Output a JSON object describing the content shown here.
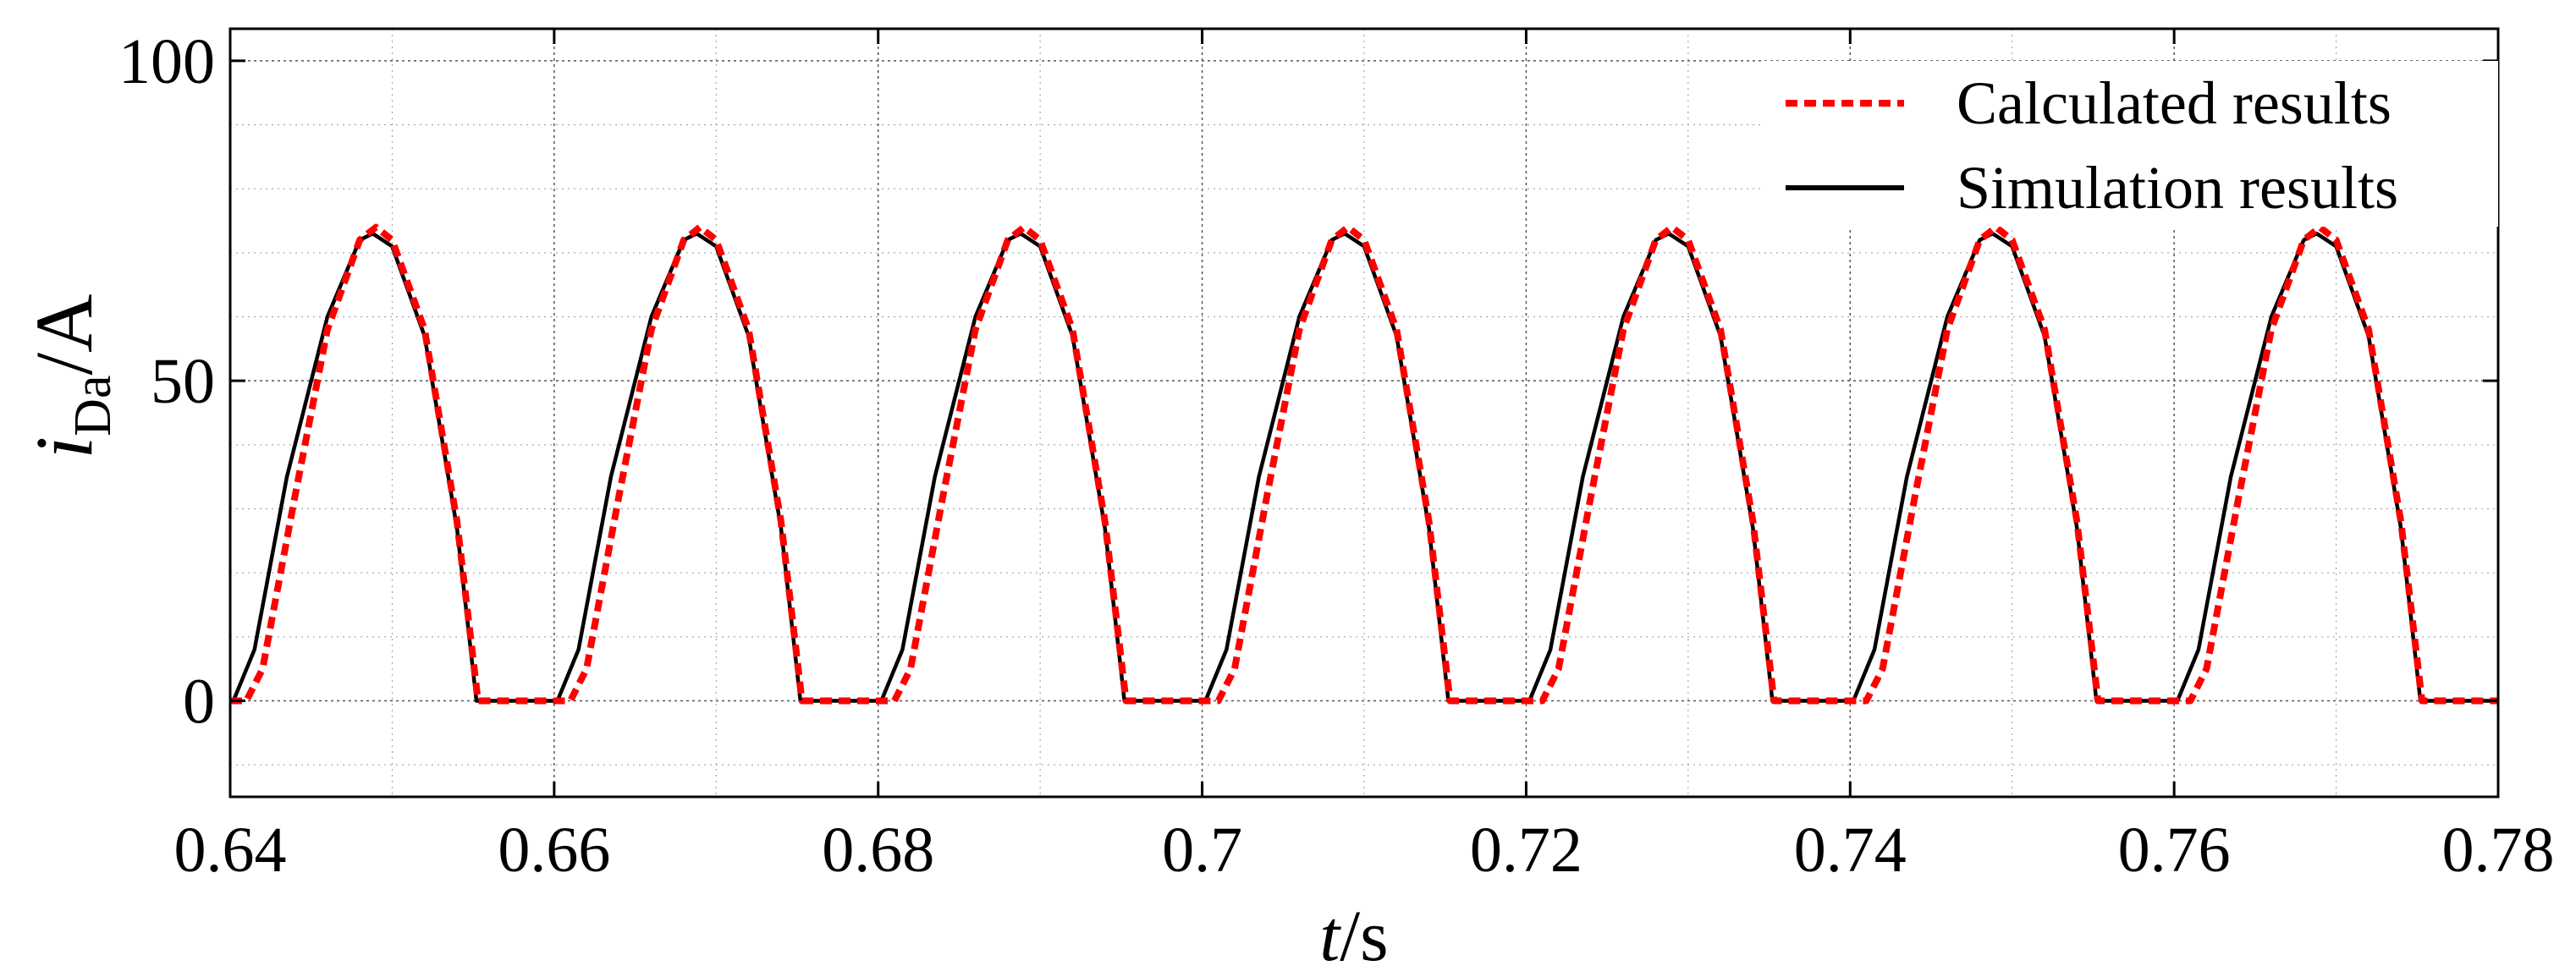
{
  "chart_data": {
    "type": "line",
    "title": "",
    "xlabel": {
      "var": "t",
      "unit": "/s"
    },
    "ylabel": {
      "var": "i",
      "sub": "Da",
      "unit": "/A"
    },
    "xlim": [
      0.64,
      0.78
    ],
    "ylim": [
      -15,
      105
    ],
    "xticks": [
      0.64,
      0.66,
      0.68,
      0.7,
      0.72,
      0.74,
      0.76,
      0.78
    ],
    "xtick_labels": [
      "0.64",
      "0.66",
      "0.68",
      "0.7",
      "0.72",
      "0.74",
      "0.76",
      "0.78"
    ],
    "yticks": [
      0,
      50,
      100
    ],
    "ytick_labels": [
      "0",
      "50",
      "100"
    ],
    "grid": true,
    "legend_position": "top-right",
    "series": [
      {
        "name": "Calculated results",
        "color": "#ff0000",
        "style": "dashed",
        "x": [
          0.64,
          0.641,
          0.642,
          0.644,
          0.646,
          0.648,
          0.649,
          0.65,
          0.652,
          0.654,
          0.6553,
          0.657,
          0.659,
          0.661,
          0.662,
          0.664,
          0.666,
          0.668,
          0.669,
          0.67,
          0.672,
          0.674,
          0.6753,
          0.677,
          0.679,
          0.681,
          0.682,
          0.684,
          0.686,
          0.688,
          0.689,
          0.69,
          0.692,
          0.694,
          0.6953,
          0.697,
          0.699,
          0.701,
          0.702,
          0.704,
          0.706,
          0.708,
          0.709,
          0.71,
          0.712,
          0.714,
          0.7153,
          0.717,
          0.719,
          0.721,
          0.722,
          0.724,
          0.726,
          0.728,
          0.729,
          0.73,
          0.732,
          0.734,
          0.7353,
          0.737,
          0.739,
          0.741,
          0.742,
          0.744,
          0.746,
          0.748,
          0.749,
          0.75,
          0.752,
          0.754,
          0.7553,
          0.757,
          0.759,
          0.761,
          0.762,
          0.764,
          0.766,
          0.768,
          0.769,
          0.77,
          0.772,
          0.774,
          0.7753,
          0.777,
          0.78
        ],
        "y": [
          0,
          0,
          5,
          32,
          58,
          72,
          74,
          72,
          58,
          28,
          0,
          0,
          0,
          0,
          5,
          32,
          58,
          72,
          74,
          72,
          58,
          28,
          0,
          0,
          0,
          0,
          5,
          32,
          58,
          72,
          74,
          72,
          58,
          28,
          0,
          0,
          0,
          0,
          5,
          32,
          58,
          72,
          74,
          72,
          58,
          28,
          0,
          0,
          0,
          0,
          5,
          32,
          58,
          72,
          74,
          72,
          58,
          28,
          0,
          0,
          0,
          0,
          5,
          32,
          58,
          72,
          74,
          72,
          58,
          28,
          0,
          0,
          0,
          0,
          5,
          32,
          58,
          72,
          74,
          72,
          58,
          28,
          0,
          0,
          0
        ]
      },
      {
        "name": "Simulation results",
        "color": "#000000",
        "style": "solid",
        "x": [
          0.64,
          0.6402,
          0.6415,
          0.6435,
          0.646,
          0.648,
          0.6488,
          0.65,
          0.652,
          0.654,
          0.6552,
          0.657,
          0.659,
          0.6602,
          0.6615,
          0.6635,
          0.666,
          0.668,
          0.6688,
          0.67,
          0.672,
          0.674,
          0.6752,
          0.677,
          0.679,
          0.6802,
          0.6815,
          0.6835,
          0.686,
          0.688,
          0.6888,
          0.69,
          0.692,
          0.694,
          0.6952,
          0.697,
          0.699,
          0.7002,
          0.7015,
          0.7035,
          0.706,
          0.708,
          0.7088,
          0.71,
          0.712,
          0.714,
          0.7152,
          0.717,
          0.719,
          0.7202,
          0.7215,
          0.7235,
          0.726,
          0.728,
          0.7288,
          0.73,
          0.732,
          0.734,
          0.7352,
          0.737,
          0.739,
          0.7402,
          0.7415,
          0.7435,
          0.746,
          0.748,
          0.7488,
          0.75,
          0.752,
          0.754,
          0.7552,
          0.757,
          0.759,
          0.7602,
          0.7615,
          0.7635,
          0.766,
          0.768,
          0.7688,
          0.77,
          0.772,
          0.774,
          0.7752,
          0.777,
          0.78
        ],
        "y": [
          0,
          0,
          8,
          35,
          60,
          72,
          73,
          71,
          57,
          27,
          0,
          0,
          0,
          0,
          8,
          35,
          60,
          72,
          73,
          71,
          57,
          27,
          0,
          0,
          0,
          0,
          8,
          35,
          60,
          72,
          73,
          71,
          57,
          27,
          0,
          0,
          0,
          0,
          8,
          35,
          60,
          72,
          73,
          71,
          57,
          27,
          0,
          0,
          0,
          0,
          8,
          35,
          60,
          72,
          73,
          71,
          57,
          27,
          0,
          0,
          0,
          0,
          8,
          35,
          60,
          72,
          73,
          71,
          57,
          27,
          0,
          0,
          0,
          0,
          8,
          35,
          60,
          72,
          73,
          71,
          57,
          27,
          0,
          0,
          0
        ]
      }
    ]
  }
}
